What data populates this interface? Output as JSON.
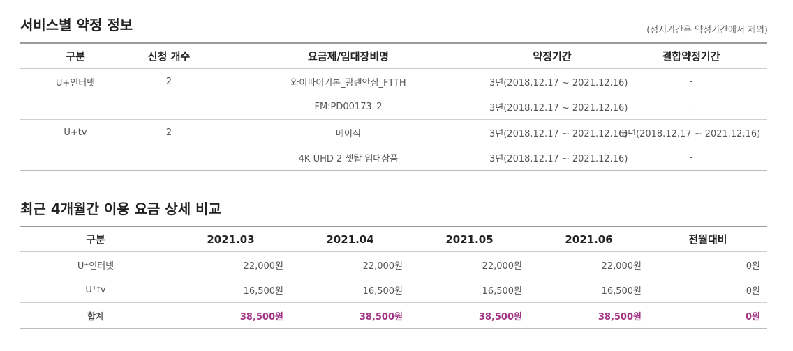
{
  "contract_section": {
    "title": "서비스별 약정 정보",
    "note": "(정지기간은 약정기간에서 제외)",
    "headers": [
      "구분",
      "신청 개수",
      "요금제/임대장비명",
      "약정기간",
      "결합약정기간"
    ],
    "rows": [
      {
        "service": "U+인터넷",
        "count": "2",
        "plan": "와이파이기본_광랜안심_FTTH",
        "period": "3년(2018.12.17 ~ 2021.12.16)",
        "bundle_period": "-"
      },
      {
        "service": "",
        "count": "",
        "plan": "FM:PD00173_2",
        "period": "3년(2018.12.17 ~ 2021.12.16)",
        "bundle_period": "-"
      },
      {
        "service": "U+tv",
        "count": "2",
        "plan": "베이직",
        "period": "3년(2018.12.17 ~ 2021.12.16)",
        "bundle_period": "3년(2018.12.17 ~ 2021.12.16)"
      },
      {
        "service": "",
        "count": "",
        "plan": "4K UHD 2 셋탑 임대상품",
        "period": "3년(2018.12.17 ~ 2021.12.16)",
        "bundle_period": "-"
      }
    ]
  },
  "billing_section": {
    "title": "최근 4개월간 이용 요금 상세 비교",
    "headers": [
      "구분",
      "2021.03",
      "2021.04",
      "2021.05",
      "2021.06",
      "전월대비"
    ],
    "rows": [
      {
        "label": "U⁺인터넷",
        "m1": "22,000원",
        "m2": "22,000원",
        "m3": "22,000원",
        "m4": "22,000원",
        "diff": "0원"
      },
      {
        "label": "U⁺tv",
        "m1": "16,500원",
        "m2": "16,500원",
        "m3": "16,500원",
        "m4": "16,500원",
        "diff": "0원"
      }
    ],
    "total": {
      "label": "합계",
      "m1": "38,500원",
      "m2": "38,500원",
      "m3": "38,500원",
      "m4": "38,500원",
      "diff": "0원"
    }
  }
}
